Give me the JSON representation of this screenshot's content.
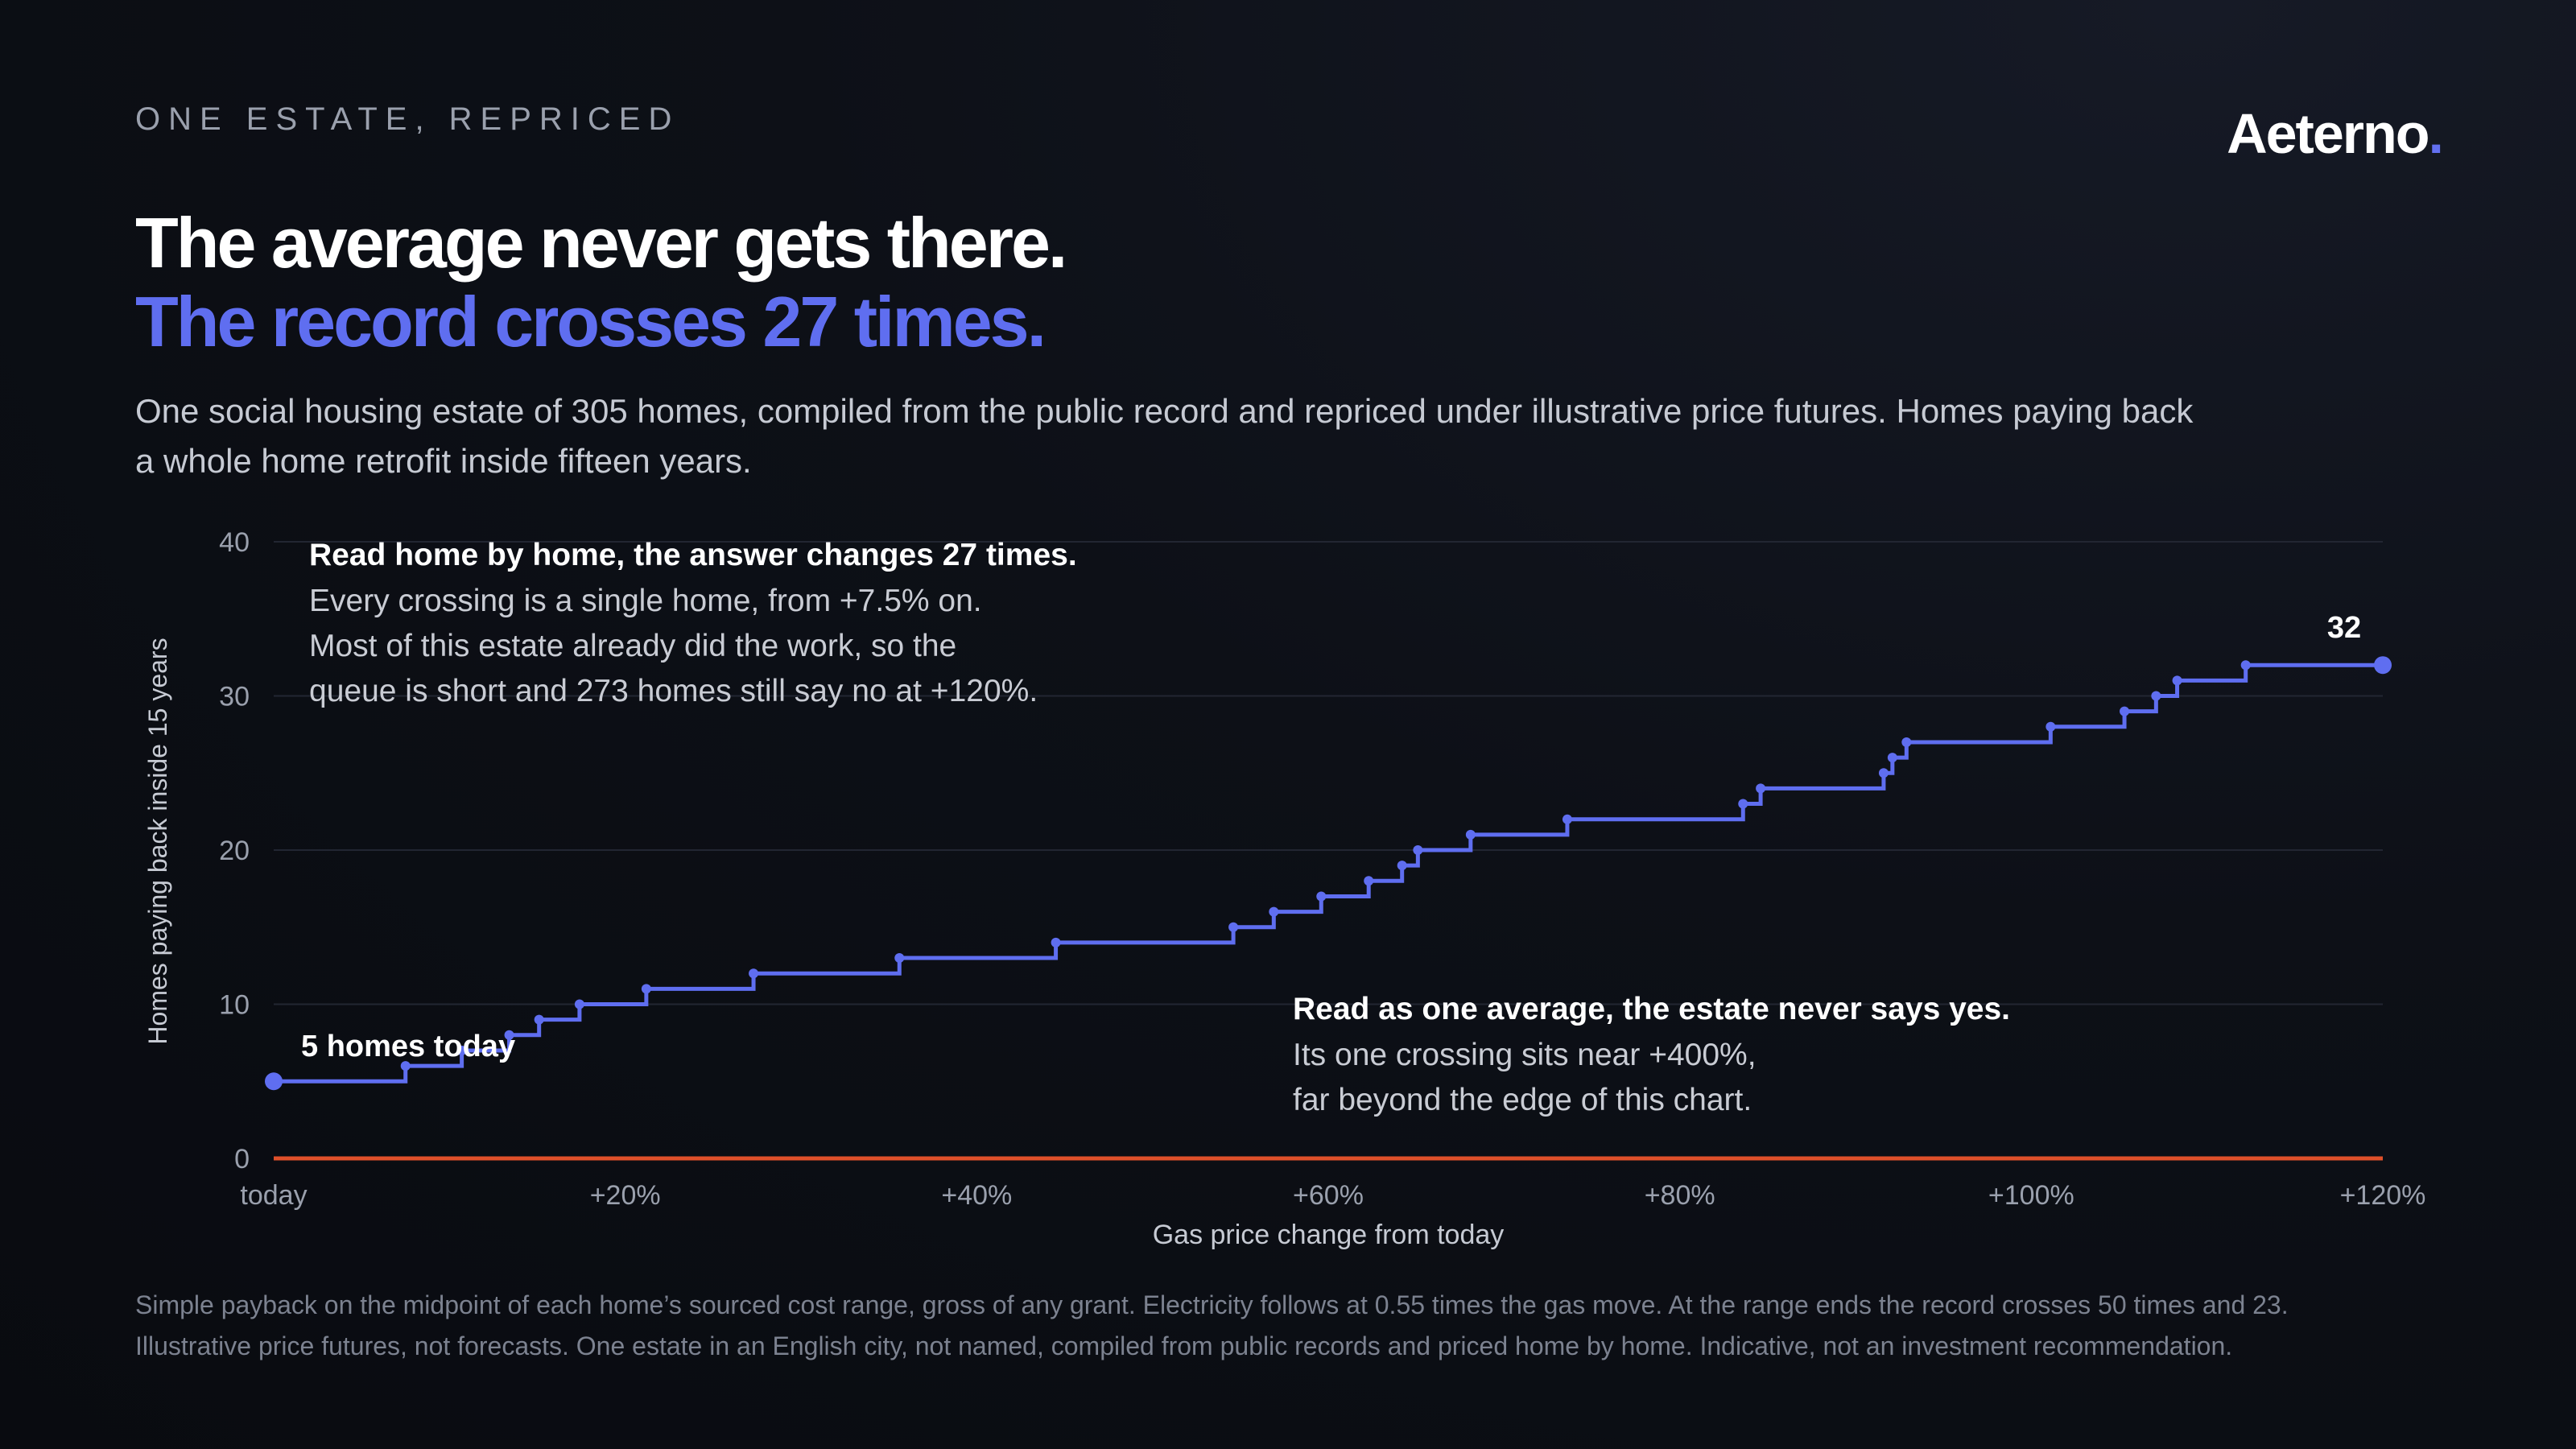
{
  "header": {
    "eyebrow": "ONE ESTATE, REPRICED",
    "logo_text": "Aeterno",
    "logo_dot": ".",
    "title_line1": "The average never gets there.",
    "title_line2": "The record crosses 27 times.",
    "subtitle": "One social housing estate of 305 homes, compiled from the public record and repriced under illustrative price futures. Homes paying back a whole home retrofit inside fifteen years."
  },
  "footnote": {
    "line1": "Simple payback on the midpoint of each home’s sourced cost range, gross of any grant. Electricity follows at 0.55 times the gas move. At the range ends the record crosses 50 times and 23.",
    "line2": "Illustrative price futures, not forecasts. One estate in an English city, not named, compiled from public records and priced home by home. Indicative, not an investment recommendation."
  },
  "annotations": {
    "top_title": "Read home by home, the answer changes 27 times.",
    "top_lines": [
      "Every crossing is a single home, from +7.5% on.",
      "Most of this estate already did the work, so the",
      "queue is short and 273 homes still say no at +120%."
    ],
    "bottom_title": "Read as one average, the estate never says yes.",
    "bottom_lines": [
      "Its one crossing sits near +400%,",
      "far beyond the edge of this chart."
    ],
    "start_label": "5 homes today",
    "end_label": "32"
  },
  "colors": {
    "record": "#5f6ef0",
    "average": "#e0502a",
    "grid": "#222632",
    "tick": "#9aa0ad"
  },
  "chart_data": {
    "type": "line",
    "xlabel": "Gas price change from today",
    "ylabel": "Homes paying back inside 15 years",
    "xlim": [
      0,
      120
    ],
    "ylim": [
      0,
      40
    ],
    "x_ticks": [
      0,
      20,
      40,
      60,
      80,
      100,
      120
    ],
    "x_tick_labels": [
      "today",
      "+20%",
      "+40%",
      "+60%",
      "+80%",
      "+100%",
      "+120%"
    ],
    "y_ticks": [
      0,
      10,
      20,
      30,
      40
    ],
    "y_tick_labels": [
      "0",
      "10",
      "20",
      "30",
      "40"
    ],
    "grid": true,
    "series": [
      {
        "step": "post",
        "points": [
          [
            0,
            5
          ],
          [
            7.5,
            6
          ],
          [
            10.7,
            7
          ],
          [
            13.4,
            8
          ],
          [
            15.1,
            9
          ],
          [
            17.4,
            10
          ],
          [
            21.2,
            11
          ],
          [
            27.3,
            12
          ],
          [
            35.6,
            13
          ],
          [
            44.5,
            14
          ],
          [
            54.6,
            15
          ],
          [
            56.9,
            16
          ],
          [
            59.6,
            17
          ],
          [
            62.3,
            18
          ],
          [
            64.2,
            19
          ],
          [
            65.1,
            20
          ],
          [
            68.1,
            21
          ],
          [
            73.6,
            22
          ],
          [
            83.6,
            23
          ],
          [
            84.6,
            24
          ],
          [
            91.6,
            25
          ],
          [
            92.1,
            26
          ],
          [
            92.9,
            27
          ],
          [
            101.1,
            28
          ],
          [
            105.3,
            29
          ],
          [
            107.1,
            30
          ],
          [
            108.3,
            31
          ],
          [
            112.2,
            32
          ],
          [
            120,
            32
          ]
        ]
      },
      {
        "points": [
          [
            0,
            0
          ],
          [
            120,
            0
          ]
        ]
      }
    ]
  }
}
